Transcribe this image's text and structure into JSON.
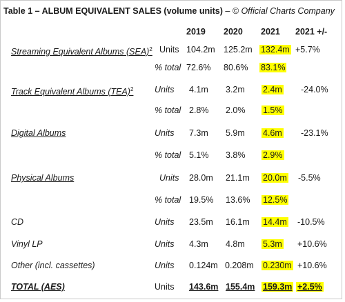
{
  "table": {
    "title_bold": "Table 1 – ALBUM EQUIVALENT SALES (volume units)",
    "title_sep": " – ",
    "title_italic": "© Official Charts Company",
    "columns": [
      "2019",
      "2020",
      "2021",
      "2021 +/-"
    ],
    "rows": [
      {
        "label": "Streaming Equivalent Albums (SEA)",
        "sup": "2",
        "unit": "Units",
        "v2019": "104.2m",
        "v2020": "125.2m",
        "v2021": "132.4m",
        "change": "+5.7%"
      },
      {
        "label": "",
        "sup": "",
        "unit": "% total",
        "v2019": "72.6%",
        "v2020": "80.6%",
        "v2021": "83.1%",
        "change": ""
      },
      {
        "label": "Track Equivalent Albums (TEA)",
        "sup": "2",
        "unit": "Units",
        "v2019": "4.1m",
        "v2020": "3.2m",
        "v2021": "2.4m",
        "change": "-24.0%"
      },
      {
        "label": "",
        "sup": "",
        "unit": "% total",
        "v2019": "2.8%",
        "v2020": "2.0%",
        "v2021": "1.5%",
        "change": ""
      },
      {
        "label": "Digital Albums",
        "sup": "",
        "unit": "Units",
        "v2019": "7.3m",
        "v2020": "5.9m",
        "v2021": "4.6m",
        "change": "-23.1%"
      },
      {
        "label": "",
        "sup": "",
        "unit": "% total",
        "v2019": "5.1%",
        "v2020": "3.8%",
        "v2021": "2.9%",
        "change": ""
      },
      {
        "label": "Physical Albums",
        "sup": "",
        "unit": "Units",
        "v2019": "28.0m",
        "v2020": "21.1m",
        "v2021": "20.0m",
        "change": "-5.5%"
      },
      {
        "label": "",
        "sup": "",
        "unit": "% total",
        "v2019": "19.5%",
        "v2020": "13.6%",
        "v2021": "12.5%",
        "change": ""
      },
      {
        "label": "CD",
        "sup": "",
        "unit": "Units",
        "v2019": "23.5m",
        "v2020": "16.1m",
        "v2021": "14.4m",
        "change": "-10.5%"
      },
      {
        "label": "Vinyl LP",
        "sup": "",
        "unit": "Units",
        "v2019": "4.3m",
        "v2020": "4.8m",
        "v2021": "5.3m",
        "change": "+10.6%"
      },
      {
        "label": "Other (incl. cassettes)",
        "sup": "",
        "unit": "Units",
        "v2019": "0.124m",
        "v2020": "0.208m",
        "v2021": "0.230m",
        "change": "+10.6%"
      },
      {
        "label": "TOTAL (AES)",
        "sup": "",
        "unit": "Units",
        "v2019": "143.6m",
        "v2020": "155.4m",
        "v2021": "159.3m",
        "change": "+2.5%"
      }
    ],
    "highlight_color": "#ffff00"
  }
}
